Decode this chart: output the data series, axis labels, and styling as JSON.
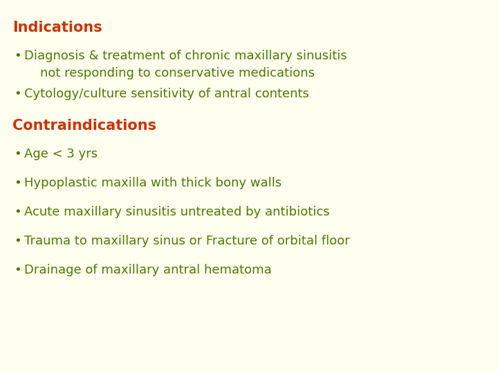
{
  "background_color": "#fffff0",
  "heading_color": "#cc3300",
  "bullet_color": "#4a7a00",
  "heading1": "Indications",
  "heading2": "Contraindications",
  "indications_bullets": [
    "Diagnosis & treatment of chronic maxillary sinusitis\n    not responding to conservative medications",
    "Cytology/culture sensitivity of antral contents"
  ],
  "contraindications_bullets": [
    "Age < 3 yrs",
    "Hypoplastic maxilla with thick bony walls",
    "Acute maxillary sinusitis untreated by antibiotics",
    "Trauma to maxillary sinus or Fracture of orbital floor",
    "Drainage of maxillary antral hematoma"
  ],
  "heading_fontsize": 15,
  "bullet_fontsize": 13,
  "bullet_char": "•"
}
